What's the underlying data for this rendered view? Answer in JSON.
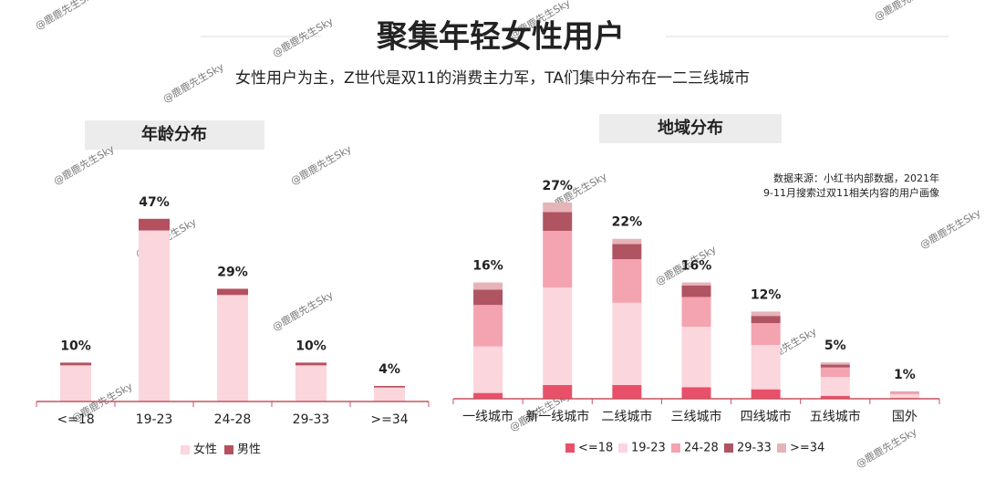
{
  "header": {
    "title": "聚集年轻女性用户",
    "subtitle": "女性用户为主，Z世代是双11的消费主力军，TA们集中分布在一二三线城市",
    "watermark": "@鹿鹿先生Sky"
  },
  "chart_data": [
    {
      "type": "stacked_bar",
      "title": "年龄分布",
      "categories": [
        "<=18",
        "19-23",
        "24-28",
        "29-33",
        ">=34"
      ],
      "series": [
        {
          "name": "女性",
          "color": "#fbd6dc",
          "values": [
            9.3,
            44,
            27.4,
            9.3,
            3.6
          ]
        },
        {
          "name": "男性",
          "color": "#b5505e",
          "values": [
            0.7,
            3,
            1.6,
            0.7,
            0.4
          ]
        }
      ],
      "totals": [
        10,
        47,
        29,
        10,
        4
      ],
      "value_labels": [
        "10%",
        "47%",
        "29%",
        "10%",
        "4%"
      ],
      "ylim": [
        0,
        50
      ],
      "legend": "bottom"
    },
    {
      "type": "stacked_bar",
      "title": "地域分布",
      "note": [
        "数据来源：小红书内部数据，2021年",
        "9-11月搜索过双11相关内容的用户画像"
      ],
      "categories": [
        "一线城市",
        "新一线城市",
        "二线城市",
        "三线城市",
        "四线城市",
        "五线城市",
        "国外"
      ],
      "series": [
        {
          "name": "<=18",
          "color": "#e8506a",
          "values": [
            0.8,
            1.9,
            1.9,
            1.6,
            1.3,
            0.4,
            0.1
          ]
        },
        {
          "name": "19-23",
          "color": "#fbd6dc",
          "values": [
            6.4,
            13.4,
            11.3,
            8.3,
            6.1,
            2.6,
            0.5
          ]
        },
        {
          "name": "24-28",
          "color": "#f4a3b0",
          "values": [
            5.7,
            7.8,
            6.0,
            4.1,
            3.0,
            1.3,
            0.3
          ]
        },
        {
          "name": "29-33",
          "color": "#b05462",
          "values": [
            2.1,
            2.6,
            2.1,
            1.6,
            1.0,
            0.4,
            0.05
          ]
        },
        {
          "name": ">=34",
          "color": "#e6b4b8",
          "values": [
            1.0,
            1.3,
            0.7,
            0.4,
            0.6,
            0.3,
            0.05
          ]
        }
      ],
      "totals": [
        16,
        27,
        22,
        16,
        12,
        5,
        1
      ],
      "value_labels": [
        "16%",
        "27%",
        "22%",
        "16%",
        "12%",
        "5%",
        "1%"
      ],
      "ylim": [
        0,
        30
      ],
      "legend": "bottom"
    }
  ]
}
